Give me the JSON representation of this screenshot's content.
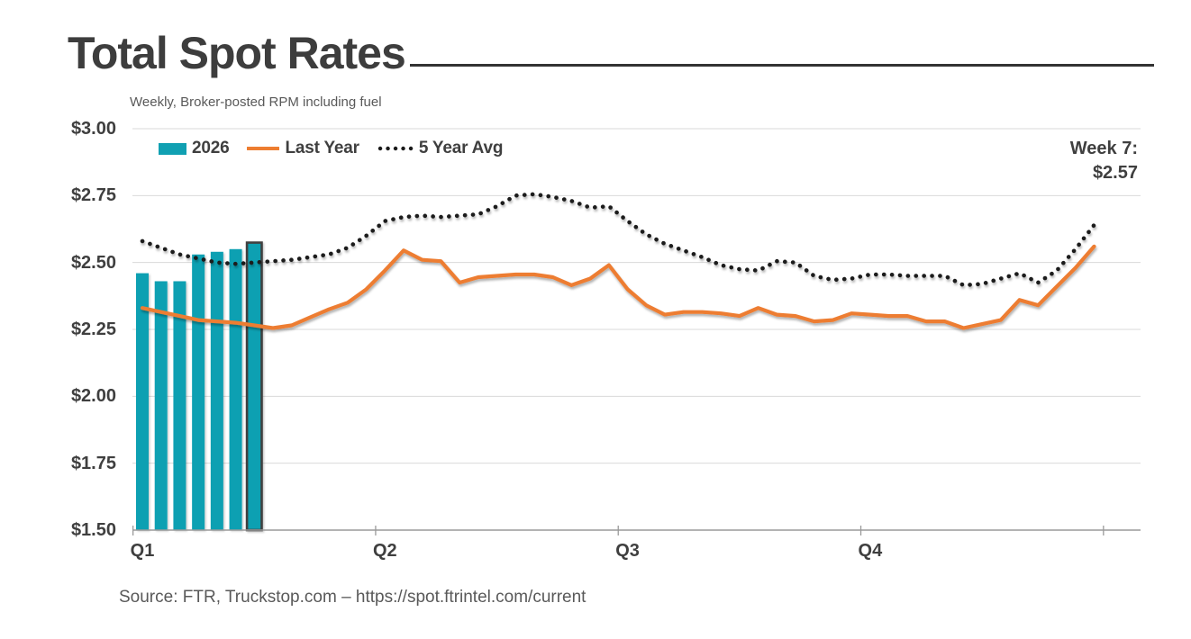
{
  "page": {
    "title": "Total Spot Rates",
    "subtitle": "Weekly, Broker-posted RPM including fuel",
    "source": "Source: FTR, Truckstop.com – https://spot.ftrintel.com/current"
  },
  "colors": {
    "bar_teal": "#10A0B2",
    "bar_highlight_stroke": "#3F3F3F",
    "last_year_orange": "#ED7D31",
    "five_year_avg_black": "#1A1A1A",
    "gridline": "#D9D9D9",
    "axis": "#9A9A9A",
    "text_dark": "#3F3F3F",
    "text_gray": "#595959"
  },
  "chart_data": {
    "type": "bar",
    "subtype": "combo-bar-line",
    "title": "Total Spot Rates",
    "subtitle": "Weekly, Broker-posted RPM including fuel",
    "x_unit": "week of year (52 weeks)",
    "weeks": 52,
    "ylim": [
      1.5,
      3.0
    ],
    "y_ticks": [
      3.0,
      2.75,
      2.5,
      2.25,
      2.0,
      1.75,
      1.5
    ],
    "y_tick_labels": [
      "$3.00",
      "$2.75",
      "$2.50",
      "$2.25",
      "$2.00",
      "$1.75",
      "$1.50"
    ],
    "x_tick_labels": [
      "Q1",
      "Q2",
      "Q3",
      "Q4"
    ],
    "x_label_week_positions": [
      1,
      14,
      27,
      40
    ],
    "x_tick_boundary_weeks": [
      0.5,
      13.5,
      26.5,
      39.5,
      52.5
    ],
    "grid": "horizontal",
    "legend_position": "top-left-inside",
    "annotation": {
      "label_line1": "Week 7:",
      "label_line2": "$2.57",
      "week": 7,
      "value": 2.57
    },
    "series": [
      {
        "name": "2026",
        "type": "bar",
        "color": "#10A0B2",
        "weeks": [
          1,
          2,
          3,
          4,
          5,
          6,
          7
        ],
        "values": [
          2.46,
          2.43,
          2.43,
          2.53,
          2.54,
          2.55,
          2.57
        ],
        "highlight_week": 7
      },
      {
        "name": "Last Year",
        "type": "line",
        "style": "solid",
        "color": "#ED7D31",
        "values": [
          2.33,
          2.315,
          2.3,
          2.285,
          2.28,
          2.275,
          2.265,
          2.255,
          2.265,
          2.295,
          2.325,
          2.35,
          2.4,
          2.47,
          2.545,
          2.51,
          2.505,
          2.425,
          2.445,
          2.45,
          2.455,
          2.455,
          2.445,
          2.415,
          2.44,
          2.49,
          2.4,
          2.34,
          2.305,
          2.315,
          2.315,
          2.31,
          2.3,
          2.33,
          2.305,
          2.3,
          2.28,
          2.285,
          2.31,
          2.305,
          2.3,
          2.3,
          2.28,
          2.28,
          2.255,
          2.27,
          2.285,
          2.36,
          2.34,
          2.41,
          2.48,
          2.56
        ]
      },
      {
        "name": "5 Year Avg",
        "type": "line",
        "style": "dotted",
        "color": "#1A1A1A",
        "values": [
          2.58,
          2.555,
          2.53,
          2.515,
          2.5,
          2.495,
          2.5,
          2.505,
          2.51,
          2.52,
          2.53,
          2.555,
          2.6,
          2.655,
          2.67,
          2.675,
          2.67,
          2.675,
          2.68,
          2.71,
          2.75,
          2.755,
          2.745,
          2.73,
          2.705,
          2.71,
          2.655,
          2.605,
          2.57,
          2.545,
          2.52,
          2.49,
          2.475,
          2.47,
          2.505,
          2.5,
          2.45,
          2.435,
          2.44,
          2.455,
          2.455,
          2.45,
          2.45,
          2.45,
          2.415,
          2.42,
          2.44,
          2.46,
          2.425,
          2.47,
          2.55,
          2.64
        ]
      }
    ]
  }
}
